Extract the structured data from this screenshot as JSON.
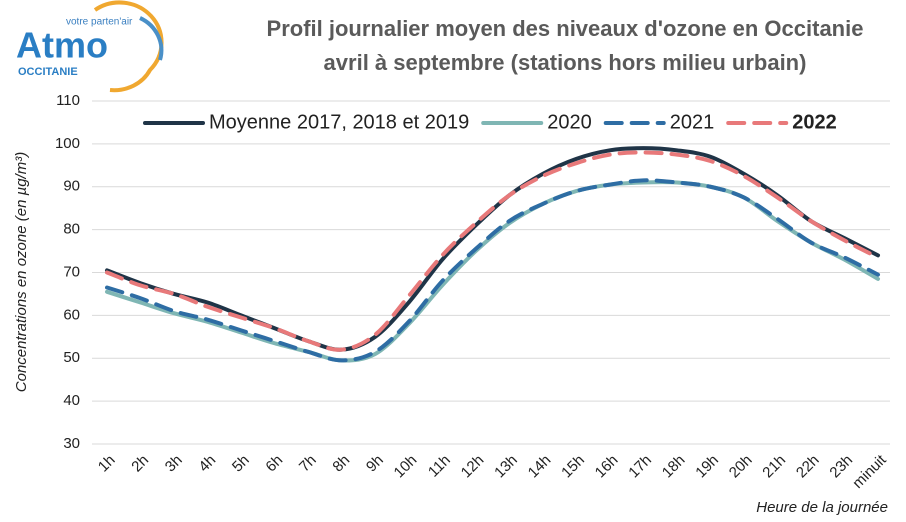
{
  "logo": {
    "tagline": "votre parten'air",
    "name": "Atmo",
    "region": "OCCITANIE"
  },
  "chart_data": {
    "type": "line",
    "title": "Profil journalier moyen des niveaux d'ozone en Occitanie",
    "subtitle": "avril à septembre (stations hors milieu urbain)",
    "y_label": "Concentrations en ozone (en µg/m³)",
    "x_label": "Heure de la journée",
    "categories": [
      "1h",
      "2h",
      "3h",
      "4h",
      "5h",
      "6h",
      "7h",
      "8h",
      "9h",
      "10h",
      "11h",
      "12h",
      "13h",
      "14h",
      "15h",
      "16h",
      "17h",
      "18h",
      "19h",
      "20h",
      "21h",
      "22h",
      "23h",
      "minuit"
    ],
    "ylim": [
      30,
      110
    ],
    "yticks": [
      30,
      40,
      50,
      60,
      70,
      80,
      90,
      100,
      110
    ],
    "grid": true,
    "legend": "top",
    "series": [
      {
        "name": "Moyenne 2017, 2018 et 2019",
        "color": "#1f3447",
        "dash": false,
        "bold": false,
        "values": [
          70.5,
          67.5,
          65,
          63,
          60,
          57,
          54,
          52,
          55,
          63,
          73,
          81,
          88,
          93,
          96.5,
          98.5,
          99,
          98.5,
          97,
          93,
          88,
          82,
          78,
          74
        ]
      },
      {
        "name": "2020",
        "color": "#7fb6b4",
        "dash": false,
        "bold": false,
        "values": [
          65.5,
          63,
          60.5,
          58.5,
          56,
          53.5,
          51.5,
          49.5,
          51,
          58,
          67,
          75,
          81.5,
          86,
          89,
          90.5,
          91,
          91,
          90,
          87.5,
          82,
          77,
          73,
          68.5
        ]
      },
      {
        "name": "2021",
        "color": "#2e6da4",
        "dash": true,
        "bold": false,
        "values": [
          66.5,
          64,
          61,
          59,
          56.5,
          54,
          51.5,
          49.5,
          51.5,
          58.5,
          68,
          75.5,
          82,
          86,
          89,
          90.5,
          91.5,
          91,
          90,
          87.5,
          82.5,
          77,
          73.5,
          69.5
        ]
      },
      {
        "name": "2022",
        "color": "#e8797a",
        "dash": true,
        "bold": true,
        "values": [
          70,
          67,
          65,
          62,
          59.5,
          57,
          54,
          52,
          55.5,
          64.5,
          74,
          81.5,
          88,
          92.5,
          95.5,
          97.5,
          98,
          97.5,
          96,
          92.5,
          87.5,
          82,
          77.5,
          73.5
        ]
      }
    ]
  }
}
